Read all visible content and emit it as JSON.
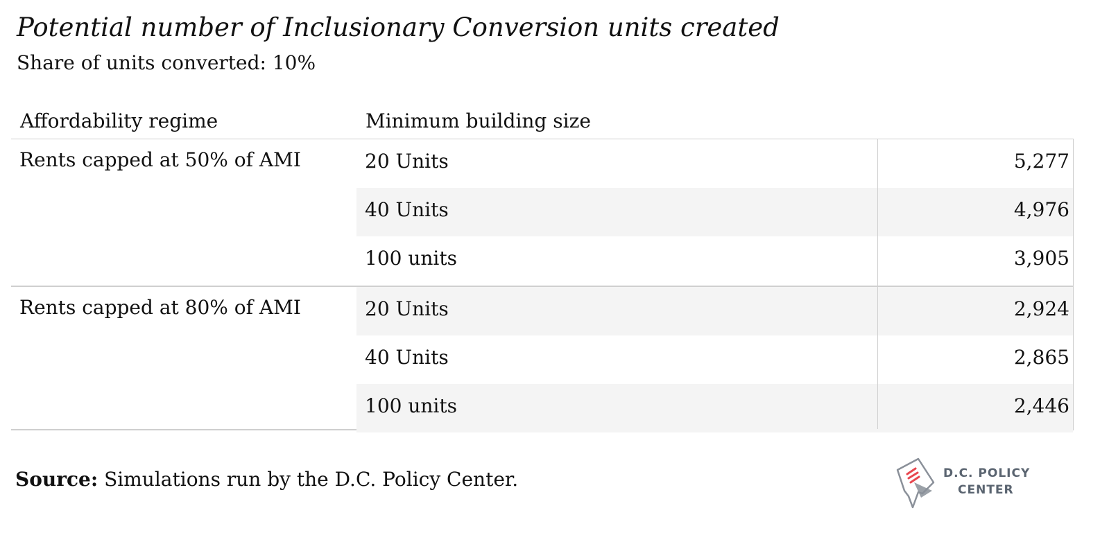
{
  "chart_data": {
    "type": "table",
    "title": "Potential number of Inclusionary Conversion units created",
    "subtitle": "Share of units converted: 10%",
    "columns": [
      "Affordability regime",
      "Minimum building size"
    ],
    "groups": [
      {
        "regime": "Rents capped at 50% of AMI",
        "rows": [
          {
            "size": "20 Units",
            "value": "5,277"
          },
          {
            "size": "40 Units",
            "value": "4,976"
          },
          {
            "size": "100 units",
            "value": "3,905"
          }
        ]
      },
      {
        "regime": "Rents capped at 80% of AMI",
        "rows": [
          {
            "size": "20 Units",
            "value": "2,924"
          },
          {
            "size": "40 Units",
            "value": "2,865"
          },
          {
            "size": "100 units",
            "value": "2,446"
          }
        ]
      }
    ]
  },
  "source": {
    "label": "Source:",
    "text": " Simulations run by the D.C. Policy Center."
  },
  "logo": {
    "line1": "D.C. POLICY",
    "line2": "CENTER",
    "icon": "dc-map-icon",
    "accent_color": "#e8474f",
    "outline_color": "#8a9099"
  }
}
